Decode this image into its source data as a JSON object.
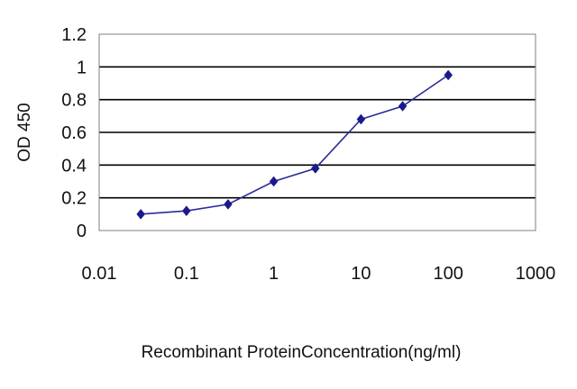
{
  "chart_data": {
    "type": "line",
    "xlabel": "Recombinant ProteinConcentration(ng/ml)",
    "ylabel": "OD 450",
    "x_scale": "log",
    "xlim": [
      0.01,
      1000
    ],
    "ylim": [
      0,
      1.2
    ],
    "grid": "horizontal",
    "x_ticks": [
      "0.01",
      "0.1",
      "1",
      "10",
      "100",
      "1000"
    ],
    "y_ticks": [
      "0",
      "0.2",
      "0.4",
      "0.6",
      "0.8",
      "1",
      "1.2"
    ],
    "colors": {
      "line": "#2b2b9a",
      "marker": "#1a1a8c",
      "grid": "#000000",
      "plot_bg": "#ffffff"
    },
    "series": [
      {
        "x": [
          0.03,
          0.1,
          0.3,
          1,
          3,
          10,
          30,
          100
        ],
        "y": [
          0.1,
          0.12,
          0.16,
          0.3,
          0.38,
          0.68,
          0.76,
          0.95
        ]
      }
    ]
  }
}
